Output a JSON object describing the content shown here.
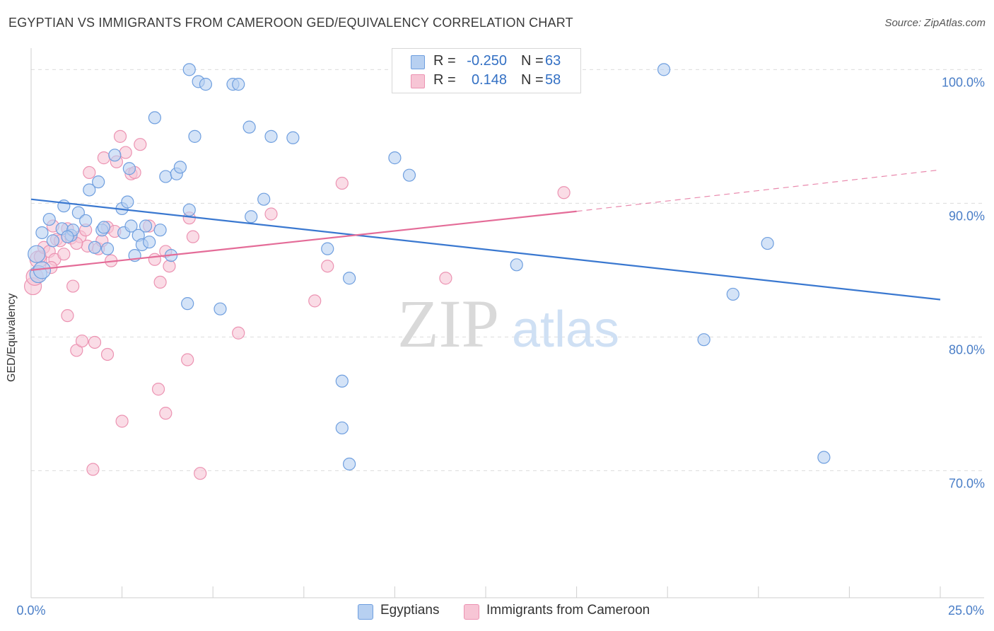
{
  "title": "EGYPTIAN VS IMMIGRANTS FROM CAMEROON GED/EQUIVALENCY CORRELATION CHART",
  "source": "Source: ZipAtlas.com",
  "watermark": {
    "zip": "ZIP",
    "atlas": "atlas"
  },
  "legend": {
    "r_label": "R =",
    "n_label": "N =",
    "rows": [
      {
        "r": "-0.250",
        "n": "63"
      },
      {
        "r": "0.148",
        "n": "58"
      }
    ]
  },
  "colors": {
    "blue_fill": "#b7d0f1",
    "blue_stroke": "#6f9fdf",
    "blue_line": "#3a78d0",
    "pink_fill": "#f7c5d5",
    "pink_stroke": "#ec93b2",
    "pink_line": "#e46c98",
    "tick_text": "#4a7ec7"
  },
  "chart_data": {
    "type": "scatter",
    "title": "EGYPTIAN VS IMMIGRANTS FROM CAMEROON GED/EQUIVALENCY CORRELATION CHART",
    "xlabel": "",
    "ylabel": "GED/Equivalency",
    "xlim": [
      0,
      25
    ],
    "ylim": [
      60.5,
      101.5
    ],
    "x_ticks": [
      "0.0%",
      "25.0%"
    ],
    "y_ticks": [
      {
        "value": 70,
        "label": "70.0%"
      },
      {
        "value": 80,
        "label": "80.0%"
      },
      {
        "value": 90,
        "label": "90.0%"
      },
      {
        "value": 100,
        "label": "100.0%"
      }
    ],
    "grid": true,
    "legend_position": "top-center",
    "series": [
      {
        "name": "Egyptians",
        "r": -0.25,
        "n": 63,
        "trend": {
          "x": [
            0,
            25
          ],
          "y": [
            90.3,
            82.8
          ],
          "dashed_from": null
        },
        "points": [
          [
            0.15,
            86.2
          ],
          [
            0.2,
            84.7
          ],
          [
            0.3,
            85.0
          ],
          [
            0.3,
            87.8
          ],
          [
            0.5,
            88.8
          ],
          [
            0.6,
            87.2
          ],
          [
            0.85,
            88.1
          ],
          [
            0.9,
            89.8
          ],
          [
            1.1,
            87.6
          ],
          [
            1.15,
            88.0
          ],
          [
            1.3,
            89.3
          ],
          [
            1.5,
            88.7
          ],
          [
            1.6,
            91.0
          ],
          [
            1.75,
            86.7
          ],
          [
            1.85,
            91.6
          ],
          [
            1.95,
            88.0
          ],
          [
            2.1,
            86.6
          ],
          [
            2.3,
            93.6
          ],
          [
            2.5,
            89.6
          ],
          [
            2.55,
            87.8
          ],
          [
            2.65,
            90.1
          ],
          [
            2.7,
            92.6
          ],
          [
            2.75,
            88.3
          ],
          [
            2.85,
            86.1
          ],
          [
            2.95,
            87.6
          ],
          [
            3.05,
            86.9
          ],
          [
            3.15,
            88.3
          ],
          [
            3.25,
            87.1
          ],
          [
            3.4,
            96.4
          ],
          [
            3.55,
            88.0
          ],
          [
            3.7,
            92.0
          ],
          [
            3.85,
            86.1
          ],
          [
            4.0,
            92.2
          ],
          [
            4.1,
            92.7
          ],
          [
            4.3,
            82.5
          ],
          [
            4.35,
            89.5
          ],
          [
            4.35,
            100.0
          ],
          [
            4.5,
            95.0
          ],
          [
            4.6,
            99.1
          ],
          [
            4.8,
            98.9
          ],
          [
            5.2,
            82.1
          ],
          [
            5.55,
            98.9
          ],
          [
            5.7,
            98.9
          ],
          [
            6.0,
            95.7
          ],
          [
            6.05,
            89.0
          ],
          [
            6.4,
            90.3
          ],
          [
            6.6,
            95.0
          ],
          [
            7.2,
            94.9
          ],
          [
            8.15,
            86.6
          ],
          [
            8.55,
            76.7
          ],
          [
            8.75,
            84.4
          ],
          [
            8.55,
            73.2
          ],
          [
            8.75,
            70.5
          ],
          [
            10.0,
            93.4
          ],
          [
            10.4,
            92.1
          ],
          [
            13.35,
            85.4
          ],
          [
            17.4,
            100.0
          ],
          [
            18.5,
            79.8
          ],
          [
            19.3,
            83.2
          ],
          [
            20.25,
            87.0
          ],
          [
            21.8,
            71.0
          ],
          [
            1.0,
            87.5
          ],
          [
            2.0,
            88.2
          ]
        ]
      },
      {
        "name": "Immigrants from Cameroon",
        "r": 0.148,
        "n": 58,
        "trend": {
          "x": [
            0,
            15
          ],
          "y": [
            85.0,
            89.4
          ],
          "dashed_from": 15,
          "dashed_to": [
            25,
            92.5
          ]
        },
        "points": [
          [
            0.05,
            83.8
          ],
          [
            0.1,
            84.5
          ],
          [
            0.2,
            85.8
          ],
          [
            0.25,
            86.0
          ],
          [
            0.35,
            86.7
          ],
          [
            0.5,
            86.4
          ],
          [
            0.6,
            88.3
          ],
          [
            0.65,
            85.8
          ],
          [
            0.7,
            87.3
          ],
          [
            0.8,
            87.2
          ],
          [
            0.9,
            86.2
          ],
          [
            1.0,
            88.1
          ],
          [
            1.0,
            81.6
          ],
          [
            1.1,
            87.4
          ],
          [
            1.15,
            83.8
          ],
          [
            1.25,
            79.0
          ],
          [
            1.35,
            87.5
          ],
          [
            1.4,
            79.7
          ],
          [
            1.5,
            88.0
          ],
          [
            1.55,
            86.8
          ],
          [
            1.6,
            92.3
          ],
          [
            1.7,
            70.1
          ],
          [
            1.75,
            79.6
          ],
          [
            1.85,
            86.6
          ],
          [
            1.95,
            87.2
          ],
          [
            2.0,
            93.4
          ],
          [
            2.1,
            88.2
          ],
          [
            2.1,
            78.7
          ],
          [
            2.2,
            85.7
          ],
          [
            2.35,
            93.1
          ],
          [
            2.45,
            95.0
          ],
          [
            2.5,
            73.7
          ],
          [
            2.6,
            93.8
          ],
          [
            2.75,
            92.2
          ],
          [
            2.85,
            92.3
          ],
          [
            3.0,
            94.4
          ],
          [
            3.25,
            88.3
          ],
          [
            3.4,
            85.8
          ],
          [
            3.5,
            76.1
          ],
          [
            3.55,
            84.1
          ],
          [
            3.7,
            74.3
          ],
          [
            3.7,
            86.4
          ],
          [
            3.8,
            85.3
          ],
          [
            4.3,
            78.3
          ],
          [
            4.35,
            88.9
          ],
          [
            4.45,
            87.5
          ],
          [
            4.65,
            69.8
          ],
          [
            5.7,
            80.3
          ],
          [
            6.6,
            89.2
          ],
          [
            7.8,
            82.7
          ],
          [
            8.15,
            85.3
          ],
          [
            8.55,
            91.5
          ],
          [
            11.4,
            84.4
          ],
          [
            11.7,
            100.0
          ],
          [
            14.65,
            90.8
          ],
          [
            0.55,
            85.2
          ],
          [
            1.25,
            87.0
          ],
          [
            2.3,
            87.9
          ]
        ]
      }
    ]
  },
  "bottom_legend": [
    {
      "label": "Egyptians"
    },
    {
      "label": "Immigrants from Cameroon"
    }
  ]
}
